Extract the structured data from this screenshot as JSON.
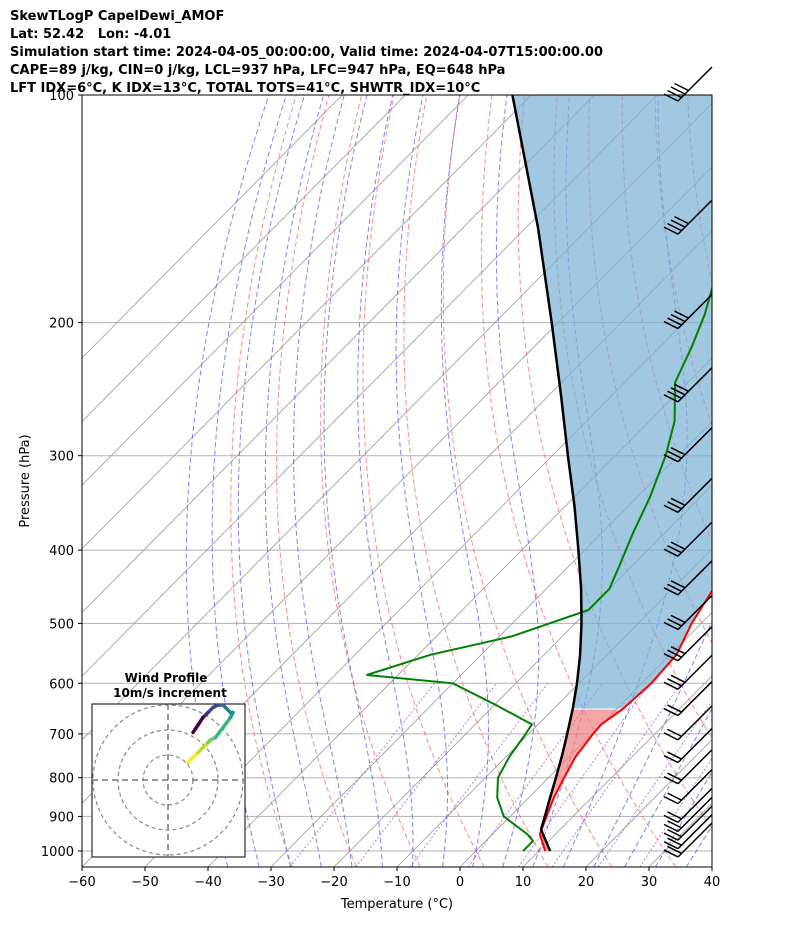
{
  "header": {
    "line1": "SkewTLogP CapelDewi_AMOF",
    "line2": "Lat: 52.42   Lon: -4.01",
    "line3": "Simulation start time: 2024-04-05_00:00:00, Valid time: 2024-04-07T15:00:00.00",
    "line4": "CAPE=89 j/kg, CIN=0 j/kg, LCL=937 hPa, LFC=947 hPa, EQ=648 hPa",
    "line5": "LFT IDX=6°C, K IDX=13°C, TOTAL TOTS=41°C, SHWTR_IDX=10°C"
  },
  "chart_data": {
    "type": "line",
    "skew_t": true,
    "xlabel": "Temperature (°C)",
    "ylabel": "Pressure (hPa)",
    "xlim": [
      -60,
      40
    ],
    "ylim": [
      1050,
      100
    ],
    "y_scale": "log",
    "x_ticks": [
      -60,
      -50,
      -40,
      -30,
      -20,
      -10,
      0,
      10,
      20,
      30,
      40
    ],
    "y_ticks": [
      100,
      200,
      300,
      400,
      500,
      600,
      700,
      800,
      900,
      1000
    ],
    "grid": true,
    "colors": {
      "temperature": "#ff0000",
      "dewpoint": "#008000",
      "parcel": "#000000",
      "cape_fill": "#7bafd4",
      "cin_fill": "#f08080",
      "dry_adiabats": "#ff6060",
      "moist_adiabats": "#6060ff",
      "mixing_ratio": "#9933cc",
      "isotherms": "#999999"
    },
    "series": [
      {
        "key": "temperature",
        "points": [
          [
            1000,
            11.0
          ],
          [
            950,
            7.5
          ],
          [
            900,
            5.8
          ],
          [
            850,
            4.0
          ],
          [
            800,
            2.5
          ],
          [
            750,
            1.0
          ],
          [
            700,
            0.2
          ],
          [
            680,
            0.0
          ],
          [
            650,
            1.0
          ],
          [
            600,
            1.5
          ],
          [
            550,
            1.0
          ],
          [
            500,
            -1.5
          ],
          [
            450,
            -3.5
          ],
          [
            400,
            -5.5
          ],
          [
            350,
            -8.5
          ],
          [
            320,
            -10.5
          ],
          [
            300,
            -11.5
          ],
          [
            280,
            -12.0
          ],
          [
            260,
            -11.0
          ],
          [
            250,
            -10.5
          ],
          [
            230,
            -11.0
          ],
          [
            210,
            -11.5
          ],
          [
            200,
            -12.0
          ],
          [
            180,
            -13.5
          ],
          [
            160,
            -14.5
          ],
          [
            140,
            -15.5
          ],
          [
            120,
            -16.0
          ],
          [
            110,
            -16.5
          ],
          [
            100,
            -17.0
          ]
        ]
      },
      {
        "key": "dewpoint",
        "points": [
          [
            1000,
            7.5
          ],
          [
            970,
            7.5
          ],
          [
            950,
            5.5
          ],
          [
            900,
            -1.0
          ],
          [
            850,
            -5.0
          ],
          [
            800,
            -8.0
          ],
          [
            750,
            -9.5
          ],
          [
            700,
            -10.5
          ],
          [
            680,
            -11.0
          ],
          [
            640,
            -20.0
          ],
          [
            600,
            -30.0
          ],
          [
            585,
            -45.0
          ],
          [
            550,
            -38.0
          ],
          [
            520,
            -28.0
          ],
          [
            480,
            -20.0
          ],
          [
            450,
            -20.0
          ],
          [
            420,
            -22.0
          ],
          [
            380,
            -25.0
          ],
          [
            340,
            -28.0
          ],
          [
            300,
            -32.0
          ],
          [
            270,
            -36.0
          ],
          [
            240,
            -42.0
          ],
          [
            215,
            -45.0
          ],
          [
            195,
            -48.0
          ],
          [
            175,
            -52.0
          ],
          [
            165,
            -54.0
          ],
          [
            140,
            -50.0
          ],
          [
            110,
            -44.0
          ],
          [
            100,
            -42.0
          ]
        ]
      },
      {
        "key": "parcel",
        "points": [
          [
            1000,
            11.8
          ],
          [
            950,
            8.0
          ],
          [
            937,
            7.0
          ],
          [
            900,
            5.5
          ],
          [
            850,
            3.4
          ],
          [
            800,
            1.2
          ],
          [
            750,
            -1.2
          ],
          [
            700,
            -3.9
          ],
          [
            648,
            -7.0
          ],
          [
            600,
            -10.3
          ],
          [
            550,
            -14.3
          ],
          [
            500,
            -19.0
          ],
          [
            450,
            -24.5
          ],
          [
            400,
            -31.0
          ],
          [
            350,
            -38.5
          ],
          [
            300,
            -47.5
          ],
          [
            250,
            -58.0
          ],
          [
            200,
            -71.0
          ],
          [
            150,
            -88.0
          ],
          [
            100,
            -113.0
          ]
        ]
      }
    ],
    "wind_barbs": {
      "pressures": [
        100,
        150,
        200,
        250,
        300,
        350,
        400,
        450,
        500,
        550,
        600,
        650,
        700,
        750,
        800,
        850,
        900,
        925,
        950,
        975,
        1000
      ],
      "speed_kt": [
        45,
        40,
        35,
        35,
        30,
        30,
        30,
        30,
        25,
        25,
        25,
        20,
        20,
        20,
        20,
        15,
        15,
        15,
        15,
        15,
        15
      ],
      "direction_deg": [
        225,
        225,
        225,
        225,
        225,
        225,
        225,
        225,
        225,
        225,
        225,
        225,
        225,
        225,
        225,
        225,
        225,
        225,
        225,
        225,
        225
      ]
    },
    "hodograph": {
      "title_line1": "Wind Profile",
      "title_line2": "10m/s increment",
      "ring_step_ms": 10,
      "points_uv": [
        [
          8,
          7
        ],
        [
          10,
          9
        ],
        [
          12,
          11
        ],
        [
          14,
          13
        ],
        [
          16,
          15
        ],
        [
          17,
          16
        ],
        [
          19,
          17
        ],
        [
          22,
          21
        ],
        [
          25,
          25
        ],
        [
          26,
          27
        ],
        [
          25,
          27
        ],
        [
          24,
          28
        ],
        [
          23,
          29
        ],
        [
          22,
          30
        ],
        [
          20,
          30
        ],
        [
          18,
          29
        ],
        [
          16,
          27
        ],
        [
          15,
          26
        ],
        [
          14,
          25
        ],
        [
          12,
          22
        ],
        [
          10,
          19
        ]
      ]
    }
  }
}
